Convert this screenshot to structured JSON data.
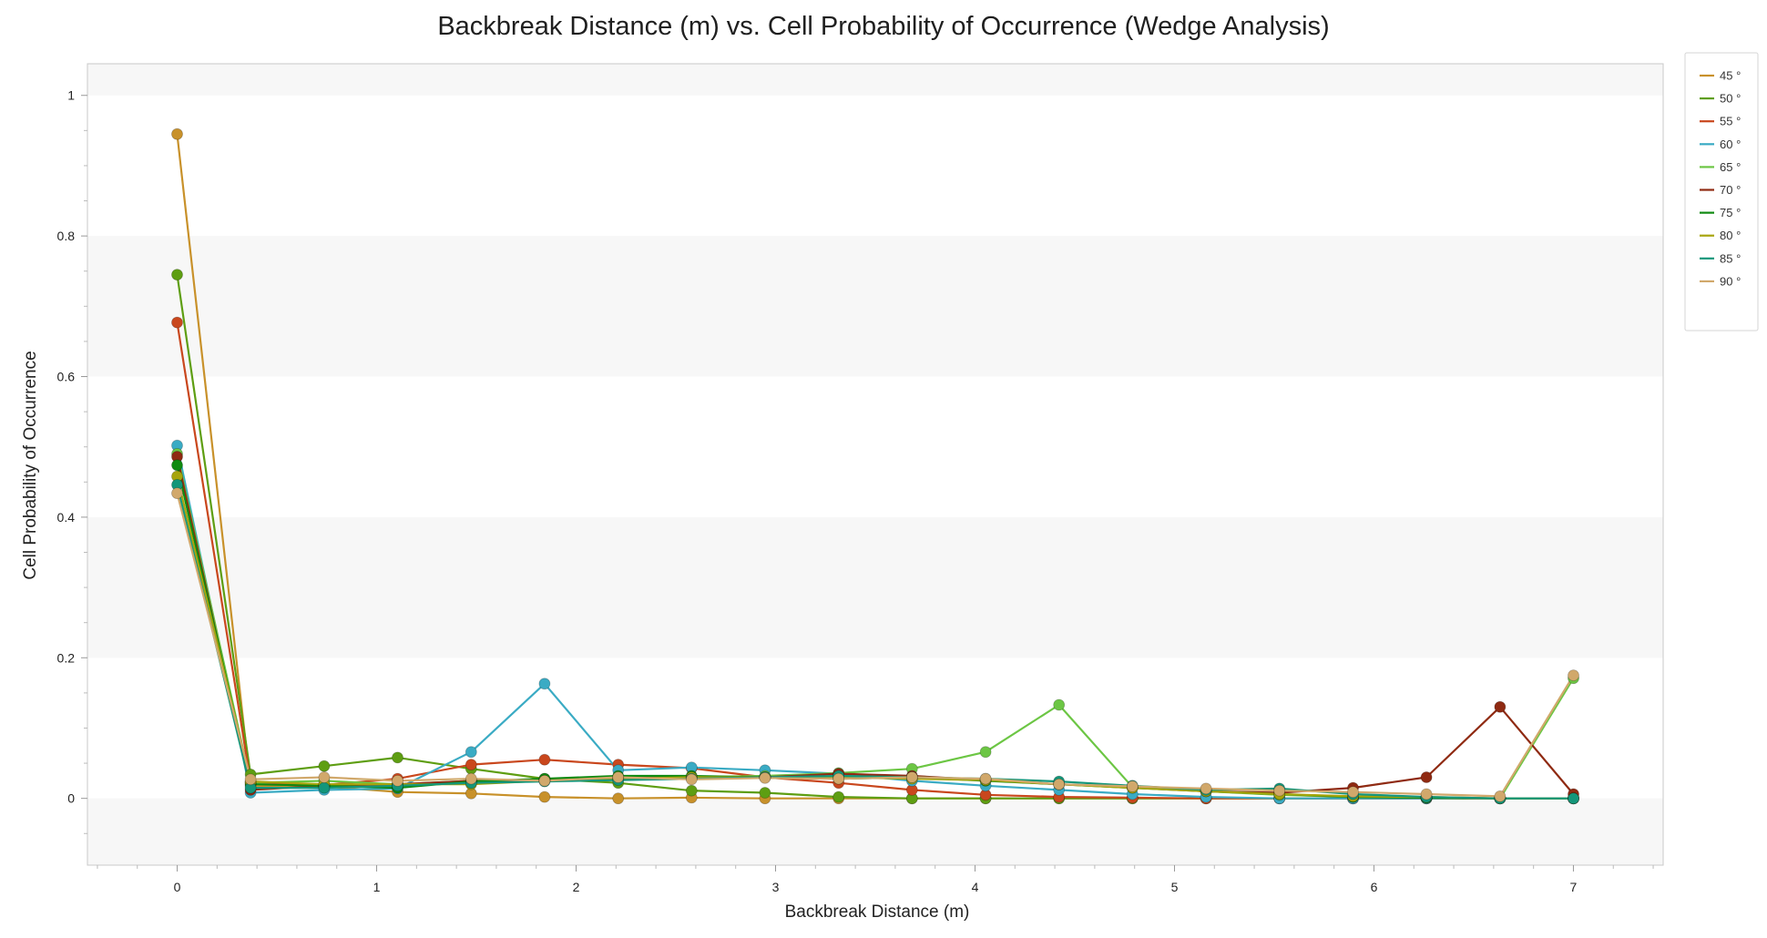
{
  "chart_data": {
    "type": "line",
    "title": "Backbreak Distance (m) vs. Cell Probability of Occurrence (Wedge Analysis)",
    "xlabel": "Backbreak Distance (m)",
    "ylabel": "Cell Probability of Occurrence",
    "xlim": [
      -0.45,
      7.45
    ],
    "ylim": [
      -0.095,
      1.045
    ],
    "xticks": [
      "0",
      "1",
      "2",
      "3",
      "4",
      "5",
      "6",
      "7"
    ],
    "yticks": [
      "0",
      "0.2",
      "0.4",
      "0.6",
      "0.8",
      "1"
    ],
    "grid": "alternating horizontal bands",
    "legend_position": "top-right",
    "x": [
      0,
      0.368,
      0.737,
      1.105,
      1.474,
      1.842,
      2.211,
      2.579,
      2.947,
      3.316,
      3.684,
      4.053,
      4.421,
      4.789,
      5.158,
      5.526,
      5.895,
      6.263,
      6.632,
      7.0
    ],
    "series": [
      {
        "name": "45 °",
        "color": "#c8912a",
        "values": [
          0.945,
          0.018,
          0.017,
          0.009,
          0.007,
          0.002,
          0.0,
          0.001,
          0.0,
          0.0,
          0.0,
          0.0,
          0.0,
          0.0,
          0.0,
          0.0,
          0.0,
          0.0,
          0.0,
          0.0
        ]
      },
      {
        "name": "50 °",
        "color": "#5e9e12",
        "values": [
          0.745,
          0.034,
          0.046,
          0.058,
          0.042,
          0.028,
          0.022,
          0.011,
          0.008,
          0.002,
          0.0,
          0.0,
          0.0,
          0.0,
          0.0,
          0.0,
          0.0,
          0.0,
          0.0,
          0.0
        ]
      },
      {
        "name": "55 °",
        "color": "#c9471d",
        "values": [
          0.677,
          0.023,
          0.019,
          0.028,
          0.048,
          0.055,
          0.048,
          0.043,
          0.03,
          0.022,
          0.012,
          0.005,
          0.002,
          0.001,
          0.0,
          0.0,
          0.0,
          0.0,
          0.0,
          0.0
        ]
      },
      {
        "name": "60 °",
        "color": "#3aabc4",
        "values": [
          0.502,
          0.008,
          0.012,
          0.014,
          0.066,
          0.163,
          0.04,
          0.044,
          0.04,
          0.035,
          0.025,
          0.018,
          0.012,
          0.006,
          0.002,
          0.0,
          0.0,
          0.0,
          0.0,
          0.0
        ]
      },
      {
        "name": "65 °",
        "color": "#6cc644",
        "values": [
          0.49,
          0.022,
          0.025,
          0.02,
          0.025,
          0.026,
          0.028,
          0.03,
          0.032,
          0.036,
          0.042,
          0.066,
          0.133,
          0.016,
          0.01,
          0.005,
          0.002,
          0.001,
          0.0,
          0.171
        ]
      },
      {
        "name": "70 °",
        "color": "#8f2a12",
        "values": [
          0.486,
          0.012,
          0.018,
          0.02,
          0.025,
          0.026,
          0.03,
          0.03,
          0.03,
          0.035,
          0.032,
          0.026,
          0.02,
          0.016,
          0.01,
          0.008,
          0.015,
          0.03,
          0.13,
          0.006
        ]
      },
      {
        "name": "75 °",
        "color": "#0f8a10",
        "values": [
          0.474,
          0.02,
          0.018,
          0.015,
          0.024,
          0.028,
          0.032,
          0.032,
          0.03,
          0.028,
          0.03,
          0.025,
          0.02,
          0.015,
          0.01,
          0.006,
          0.002,
          0.001,
          0.0,
          0.0
        ]
      },
      {
        "name": "80 °",
        "color": "#a7a40c",
        "values": [
          0.458,
          0.024,
          0.02,
          0.02,
          0.02,
          0.025,
          0.028,
          0.03,
          0.03,
          0.03,
          0.028,
          0.026,
          0.02,
          0.015,
          0.01,
          0.006,
          0.003,
          0.002,
          0.0,
          0.0
        ]
      },
      {
        "name": "85 °",
        "color": "#14967a",
        "values": [
          0.446,
          0.015,
          0.015,
          0.018,
          0.022,
          0.024,
          0.026,
          0.028,
          0.03,
          0.032,
          0.03,
          0.028,
          0.024,
          0.018,
          0.012,
          0.014,
          0.006,
          0.002,
          0.0,
          0.0
        ]
      },
      {
        "name": "90 °",
        "color": "#d1a86b",
        "values": [
          0.434,
          0.027,
          0.03,
          0.025,
          0.028,
          0.025,
          0.03,
          0.027,
          0.029,
          0.028,
          0.03,
          0.028,
          0.02,
          0.017,
          0.014,
          0.011,
          0.009,
          0.006,
          0.003,
          0.175
        ]
      }
    ]
  }
}
